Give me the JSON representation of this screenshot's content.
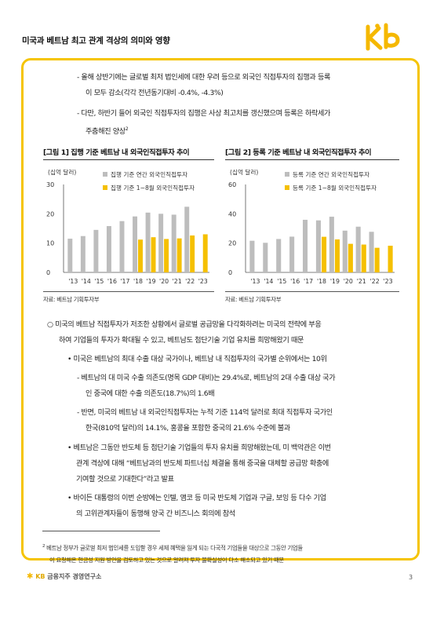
{
  "header": {
    "title": "미국과 베트남 최고 관계 격상의 의미와 영향"
  },
  "logo_colors": {
    "primary": "#f5b800"
  },
  "intro": {
    "line1": "- 올해 상반기에는 글로벌 최저 법인세에 대한 우려 등으로 외국인 직접투자의 집행과 등록",
    "line2": "이 모두 감소(각각 전년동기대비 -0.4%, -4.3%)",
    "line3": "- 다만, 하반기 들어 외국인 직접투자의 집행은 사상 최고치를 갱신했으며 등록은 하락세가",
    "line4": "주춤해진 양상",
    "line4_sup": "2"
  },
  "figure1": {
    "title": "[그림 1] 집행 기준 베트남 내 외국인직접투자 추이",
    "source": "자료: 베트남 기획투자부"
  },
  "figure2": {
    "title": "[그림 2] 등록 기준 베트남 내 외국인직접투자 추이",
    "source": "자료: 베트남 기획투자부"
  },
  "chart_data": [
    {
      "type": "bar",
      "ylabel": "(십억 달러)",
      "ylim": [
        0,
        30
      ],
      "yticks": [
        "0",
        "10",
        "20",
        "30"
      ],
      "categories": [
        "'13",
        "'14",
        "'15",
        "'16",
        "'17",
        "'18",
        "'19",
        "'20",
        "'21",
        "'22",
        "'23"
      ],
      "series": [
        {
          "name": "집행 기준 연간 외국인직접투자",
          "color": "#bdbdbd",
          "values": [
            11.5,
            12.4,
            14.5,
            15.8,
            17.5,
            19.1,
            20.4,
            20.0,
            19.7,
            22.4,
            null
          ]
        },
        {
          "name": "집행 기준 1~8월 외국인직접투자",
          "color": "#f5c000",
          "values": [
            null,
            null,
            null,
            null,
            null,
            11.2,
            12.0,
            11.4,
            11.6,
            12.6,
            13.0
          ]
        }
      ]
    },
    {
      "type": "bar",
      "ylabel": "(십억 달러)",
      "ylim": [
        0,
        60
      ],
      "yticks": [
        "0",
        "20",
        "40",
        "60"
      ],
      "categories": [
        "'13",
        "'14",
        "'15",
        "'16",
        "'17",
        "'18",
        "'19",
        "'20",
        "'21",
        "'22",
        "'23"
      ],
      "series": [
        {
          "name": "등록 기준 연간 외국인직접투자",
          "color": "#bdbdbd",
          "values": [
            21.6,
            20.2,
            22.8,
            24.4,
            35.9,
            35.5,
            38.0,
            28.5,
            31.2,
            27.7,
            null
          ]
        },
        {
          "name": "등록 기준 1~8월 외국인직접투자",
          "color": "#f5c000",
          "values": [
            null,
            null,
            null,
            null,
            null,
            24.3,
            22.5,
            19.5,
            19.0,
            16.8,
            18.2
          ]
        }
      ]
    }
  ],
  "body": {
    "p1a": "○ 미국의 베트남 직접투자가 저조한 상황에서 글로벌 공급망을 다각화하려는 미국의 전략에 부응",
    "p1b": "하여 기업들의 투자가 확대될 수 있고, 베트남도 첨단기술 기업 유치를 희망해왔기 때문",
    "b1": "• 미국은 베트남의 최대 수출 대상 국가이나, 베트남 내 직접투자의 국가별 순위에서는 10위",
    "d1a": "- 베트남의 대 미국 수출 의존도(명목 GDP 대비)는 29.4%로, 베트남의 2대 수출 대상 국가",
    "d1b": "인 중국에 대한 수출 의존도(18.7%)의 1.6배",
    "d2a": "- 반면, 미국의 베트남 내 외국인직접투자는 누적 기준 114억 달러로 최대 직접투자 국가인",
    "d2b": "한국(810억 달러)의 14.1%, 홍콩을 포함한 중국의 21.6% 수준에 불과",
    "b2a": "• 베트남은 그동안 반도체 등 첨단기술 기업들의 투자 유치를 희망해왔는데, 미 백악관은 이번",
    "b2b": "관계 격상에 대해 “베트남과의 반도체 파트너십 체결을 통해 중국을 대체할 공급망 확충에",
    "b2c": "기여할 것으로 기대한다”라고 발표",
    "b3a": "• 바이든 대통령의 이번 순방에는 인텔, 앰코 등 미국 반도체 기업과 구글, 보잉 등 다수 기업",
    "b3b": "의 고위관계자들이 동행해 양국 간 비즈니스 회의에 참석"
  },
  "footnote": {
    "mark": "2",
    "line1": "베트남 정부가 글로벌 최저 법인세를 도입할 경우 세제 혜택을 잃게 되는 다국적 기업들을 대상으로 그동안 기업들",
    "line2": "이 요청해온 현금성 지원 방안을 검토하고 있는 것으로 알려져 투자 불확실성이 다소 해소되고 있기 때문"
  },
  "footer": {
    "org_kb": "KB",
    "org_rest": "금융지주 경영연구소",
    "page": "3"
  }
}
